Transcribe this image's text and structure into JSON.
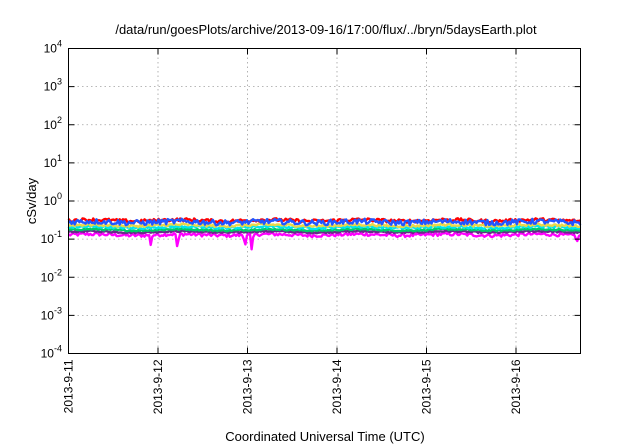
{
  "chart_data": {
    "type": "line",
    "title": "/data/run/goesPlots/archive/2013-09-16/17:00/flux/../bryn/5daysEarth.plot",
    "xlabel": "Coordinated Universal Time (UTC)",
    "ylabel": "cSv/day",
    "yscale": "log",
    "ylim": [
      0.0001,
      10000
    ],
    "xlim_days": [
      0,
      5.72
    ],
    "grid": true,
    "y_ticks": [
      {
        "base": "10",
        "exp": "-4",
        "value": 0.0001
      },
      {
        "base": "10",
        "exp": "-3",
        "value": 0.001
      },
      {
        "base": "10",
        "exp": "-2",
        "value": 0.01
      },
      {
        "base": "10",
        "exp": "-1",
        "value": 0.1
      },
      {
        "base": "10",
        "exp": "0",
        "value": 1
      },
      {
        "base": "10",
        "exp": "1",
        "value": 10
      },
      {
        "base": "10",
        "exp": "2",
        "value": 100
      },
      {
        "base": "10",
        "exp": "3",
        "value": 1000
      },
      {
        "base": "10",
        "exp": "4",
        "value": 10000
      }
    ],
    "x_ticks": [
      {
        "label": "2013-9-11",
        "day": 0
      },
      {
        "label": "2013-9-12",
        "day": 1
      },
      {
        "label": "2013-9-13",
        "day": 2
      },
      {
        "label": "2013-9-14",
        "day": 3
      },
      {
        "label": "2013-9-15",
        "day": 4
      },
      {
        "label": "2013-9-16",
        "day": 5
      }
    ],
    "series": [
      {
        "color": "#ff00ff",
        "base": 0.13,
        "noise": 0.1,
        "dips": [
          [
            1.22,
            0.04
          ],
          [
            0.92,
            0.07
          ],
          [
            2.05,
            0.04
          ],
          [
            1.97,
            0.06
          ],
          [
            5.68,
            0.08
          ]
        ]
      },
      {
        "color": "#6a2a8a",
        "base": 0.155,
        "noise": 0.05,
        "dips": []
      },
      {
        "color": "#00cc66",
        "base": 0.175,
        "noise": 0.05,
        "dips": []
      },
      {
        "color": "#00e5ee",
        "base": 0.205,
        "noise": 0.07,
        "dips": []
      },
      {
        "color": "#e8d84a",
        "base": 0.23,
        "noise": 0.07,
        "dips": []
      },
      {
        "color": "#ff0000",
        "base": 0.31,
        "noise": 0.1,
        "dips": []
      },
      {
        "color": "#2255ff",
        "base": 0.28,
        "noise": 0.16,
        "dips": []
      }
    ]
  }
}
